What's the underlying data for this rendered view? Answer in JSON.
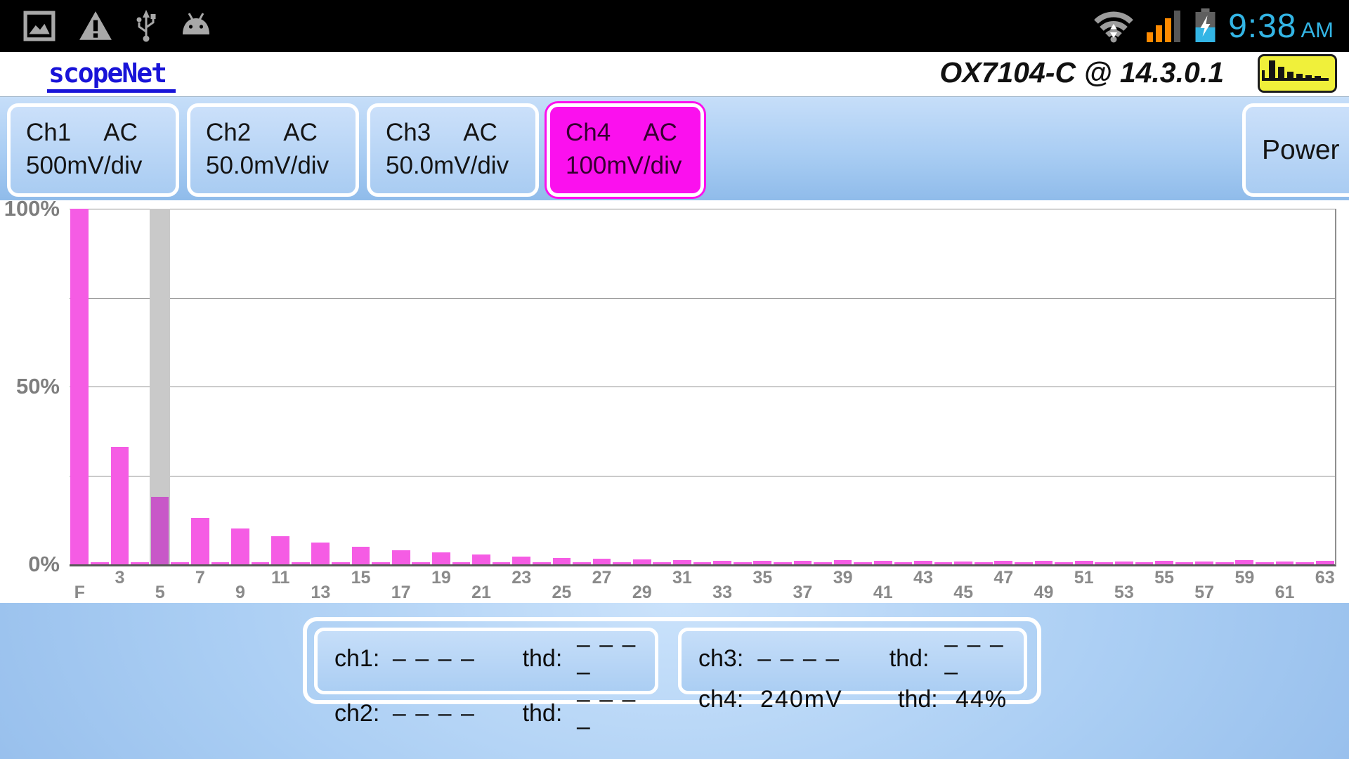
{
  "status_bar": {
    "time": "9:38",
    "time_suffix": "AM",
    "time_color": "#33B5E5",
    "icon_color": "#A8A8A8",
    "signal_color": "#FF8A00",
    "battery_color": "#33B5E5",
    "icons_left": [
      "screenshot-icon",
      "warning-icon",
      "usb-icon",
      "android-icon"
    ],
    "icons_right": [
      "wifi-icon",
      "signal-icon",
      "battery-icon"
    ]
  },
  "header": {
    "logo": "scopeNet",
    "logo_color": "#1813D8",
    "title": "OX7104-C @ 14.3.0.1",
    "mode_icon": "harmonics-histogram-icon",
    "mode_icon_bg": "#F0F03A"
  },
  "toolbar": {
    "channels": [
      {
        "name": "Ch1",
        "coupling": "AC",
        "scale": "500mV/div",
        "selected": false
      },
      {
        "name": "Ch2",
        "coupling": "AC",
        "scale": "50.0mV/div",
        "selected": false
      },
      {
        "name": "Ch3",
        "coupling": "AC",
        "scale": "50.0mV/div",
        "selected": false
      },
      {
        "name": "Ch4",
        "coupling": "AC",
        "scale": "100mV/div",
        "selected": true
      }
    ],
    "selected_color": "#FB10EE",
    "power_label": "Power"
  },
  "chart_data": {
    "type": "bar",
    "xlabel": "",
    "ylabel": "",
    "ylim": [
      0,
      100
    ],
    "grid": true,
    "gridlines_pct": [
      25,
      50,
      75,
      100
    ],
    "yticks": [
      {
        "label": "100%",
        "value": 100
      },
      {
        "label": "50%",
        "value": 50
      },
      {
        "label": "0%",
        "value": 0
      }
    ],
    "x_tick_labels": [
      "F",
      "3",
      "5",
      "7",
      "9",
      "11",
      "13",
      "15",
      "17",
      "19",
      "21",
      "23",
      "25",
      "27",
      "29",
      "31",
      "33",
      "35",
      "37",
      "39",
      "41",
      "43",
      "45",
      "47",
      "49",
      "51",
      "53",
      "55",
      "57",
      "59",
      "61",
      "63"
    ],
    "harmonic_numbers_note": "values[i] is harmonic i+1, F = fundamental",
    "values": [
      100,
      0.6,
      33,
      0.6,
      19,
      0.6,
      13,
      0.6,
      10,
      0.6,
      8,
      0.6,
      6.2,
      0.6,
      5,
      0.6,
      4,
      0.6,
      3.4,
      0.6,
      2.8,
      0.6,
      2.2,
      0.6,
      1.8,
      0.6,
      1.6,
      0.6,
      1.3,
      0.6,
      1.1,
      0.6,
      1.0,
      0.6,
      1.0,
      0.6,
      0.9,
      0.6,
      1.1,
      0.6,
      0.9,
      0.6,
      0.9,
      0.6,
      0.8,
      0.6,
      1.0,
      0.6,
      0.9,
      0.6,
      1.0,
      0.6,
      0.8,
      0.6,
      0.9,
      0.6,
      0.8,
      0.6,
      1.2,
      0.6,
      0.7,
      0.6,
      1.0
    ],
    "cursor_harmonic": 5,
    "bar_color": "#F55CE4",
    "bar_color_cursor": "#C857C8",
    "cursor_color": "#C9C9C9",
    "legend": "none"
  },
  "readouts": {
    "boxes": [
      {
        "rows": [
          {
            "ch": "ch1:",
            "value": "– – – –",
            "thd": "thd:",
            "thd_value": "– – – –"
          },
          {
            "ch": "ch2:",
            "value": "– – – –",
            "thd": "thd:",
            "thd_value": "– – – –"
          }
        ]
      },
      {
        "rows": [
          {
            "ch": "ch3:",
            "value": "– – – –",
            "thd": "thd:",
            "thd_value": "– – – –"
          },
          {
            "ch": "ch4:",
            "value": "240mV",
            "thd": "thd:",
            "thd_value": "44%"
          }
        ]
      }
    ]
  }
}
